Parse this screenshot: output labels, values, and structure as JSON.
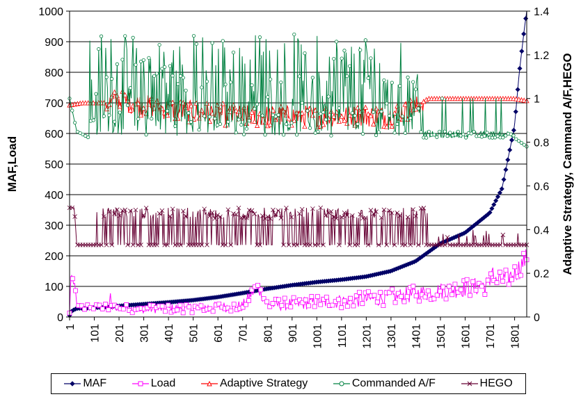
{
  "chart_data": {
    "type": "line",
    "xlabel": "",
    "ylabel": "MAF,Load",
    "y2label": "Adaptive Strategy, Cammand A/F,HEGO",
    "x_range": [
      1,
      1850
    ],
    "ylim": [
      0,
      1000
    ],
    "y2lim": [
      0,
      1.4
    ],
    "y_ticks": [
      "0",
      "100",
      "200",
      "300",
      "400",
      "500",
      "600",
      "700",
      "800",
      "900",
      "1000"
    ],
    "y2_ticks": [
      "0",
      "0.2",
      "0.4",
      "0.6",
      "0.8",
      "1",
      "1.2",
      "1.4"
    ],
    "x_ticks": [
      "1",
      "101",
      "201",
      "301",
      "401",
      "501",
      "601",
      "701",
      "801",
      "901",
      "1001",
      "1101",
      "1201",
      "1301",
      "1401",
      "1501",
      "1601",
      "1701",
      "1801"
    ],
    "grid": "horizontal",
    "legend_position": "bottom",
    "series": [
      {
        "name": "MAF",
        "axis": "left",
        "color": "#000066",
        "marker": "diamond",
        "points": [
          [
            1,
            5
          ],
          [
            10,
            20
          ],
          [
            30,
            28
          ],
          [
            100,
            30
          ],
          [
            200,
            36
          ],
          [
            300,
            42
          ],
          [
            400,
            48
          ],
          [
            500,
            55
          ],
          [
            600,
            65
          ],
          [
            700,
            78
          ],
          [
            800,
            92
          ],
          [
            900,
            104
          ],
          [
            1000,
            114
          ],
          [
            1100,
            122
          ],
          [
            1200,
            132
          ],
          [
            1300,
            150
          ],
          [
            1400,
            182
          ],
          [
            1500,
            240
          ],
          [
            1600,
            275
          ],
          [
            1700,
            340
          ],
          [
            1750,
            420
          ],
          [
            1800,
            620
          ],
          [
            1820,
            800
          ],
          [
            1840,
            940
          ],
          [
            1850,
            1000
          ]
        ]
      },
      {
        "name": "Load",
        "axis": "left",
        "color": "#ff00ff",
        "marker": "square",
        "points": [
          [
            1,
            10
          ],
          [
            5,
            110
          ],
          [
            10,
            140
          ],
          [
            15,
            100
          ],
          [
            20,
            110
          ],
          [
            25,
            95
          ],
          [
            30,
            30
          ],
          [
            100,
            32
          ],
          [
            160,
            30
          ],
          [
            165,
            80
          ],
          [
            170,
            30
          ],
          [
            200,
            30
          ],
          [
            300,
            25
          ],
          [
            400,
            28
          ],
          [
            500,
            30
          ],
          [
            600,
            32
          ],
          [
            700,
            35
          ],
          [
            760,
            100
          ],
          [
            800,
            40
          ],
          [
            900,
            42
          ],
          [
            1000,
            48
          ],
          [
            1100,
            52
          ],
          [
            1200,
            58
          ],
          [
            1300,
            65
          ],
          [
            1400,
            75
          ],
          [
            1500,
            85
          ],
          [
            1600,
            95
          ],
          [
            1700,
            105
          ],
          [
            1710,
            180
          ],
          [
            1720,
            110
          ],
          [
            1750,
            120
          ],
          [
            1800,
            140
          ],
          [
            1850,
            195
          ]
        ]
      },
      {
        "name": "Adaptive Strategy",
        "axis": "right",
        "color": "#ff0000",
        "marker": "triangle",
        "points": [
          [
            1,
            0.97
          ],
          [
            50,
            0.98
          ],
          [
            150,
            0.98
          ],
          [
            200,
            0.99
          ],
          [
            300,
            0.97
          ],
          [
            400,
            0.95
          ],
          [
            500,
            0.94
          ],
          [
            600,
            0.93
          ],
          [
            700,
            0.92
          ],
          [
            800,
            0.92
          ],
          [
            900,
            0.92
          ],
          [
            1000,
            0.92
          ],
          [
            1100,
            0.92
          ],
          [
            1200,
            0.92
          ],
          [
            1300,
            0.92
          ],
          [
            1400,
            0.96
          ],
          [
            1450,
            1.0
          ],
          [
            1500,
            1.0
          ],
          [
            1600,
            1.0
          ],
          [
            1700,
            1.0
          ],
          [
            1800,
            1.0
          ],
          [
            1850,
            0.99
          ]
        ]
      },
      {
        "name": "Commanded A/F",
        "axis": "right",
        "color": "#008040",
        "marker": "circle",
        "points": [
          [
            1,
            1.0
          ],
          [
            30,
            0.85
          ],
          [
            80,
            0.82
          ],
          [
            100,
            0.95
          ],
          [
            200,
            1.05
          ],
          [
            300,
            1.03
          ],
          [
            400,
            1.0
          ],
          [
            500,
            0.98
          ],
          [
            600,
            0.98
          ],
          [
            700,
            0.97
          ],
          [
            800,
            0.96
          ],
          [
            900,
            0.96
          ],
          [
            1000,
            0.97
          ],
          [
            1100,
            0.98
          ],
          [
            1200,
            0.98
          ],
          [
            1300,
            0.99
          ],
          [
            1400,
            0.95
          ],
          [
            1450,
            0.83
          ],
          [
            1500,
            0.82
          ],
          [
            1600,
            0.82
          ],
          [
            1700,
            0.84
          ],
          [
            1800,
            0.82
          ],
          [
            1850,
            0.78
          ]
        ],
        "range_min": 0.75,
        "range_max": 1.3
      },
      {
        "name": "HEGO",
        "axis": "right",
        "color": "#660033",
        "marker": "x",
        "points": [
          [
            1,
            0.5
          ],
          [
            20,
            0.5
          ],
          [
            30,
            0.33
          ],
          [
            100,
            0.33
          ],
          [
            200,
            0.35
          ],
          [
            400,
            0.35
          ],
          [
            800,
            0.35
          ],
          [
            1200,
            0.35
          ],
          [
            1400,
            0.34
          ],
          [
            1500,
            0.33
          ],
          [
            1850,
            0.33
          ]
        ],
        "range_min": 0.32,
        "range_max": 0.5
      }
    ]
  }
}
